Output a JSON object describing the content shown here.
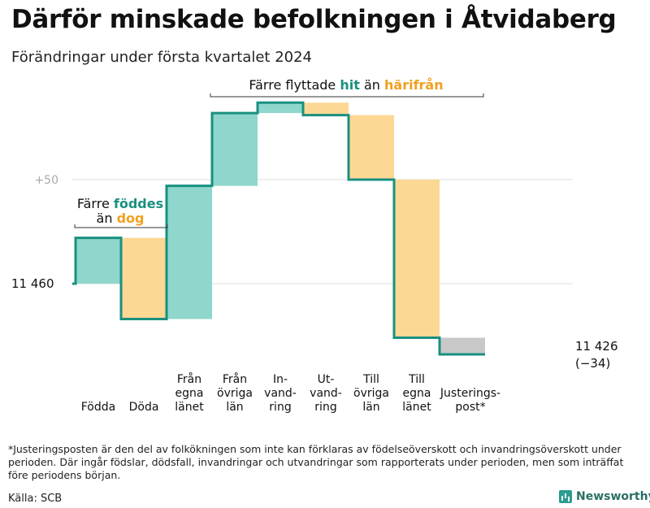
{
  "title": "Därför minskade befolkningen i Åtvidaberg",
  "subtitle": "Förändringar under första kvartalet 2024",
  "chart_data": {
    "type": "waterfall",
    "start_value": 11460,
    "end_value": 11426,
    "start_label": "11  460",
    "end_label_value": "11 426",
    "end_label_change": "(−34)",
    "grid_label": "+50",
    "grid_value": 11510,
    "steps": [
      {
        "name": "Födda",
        "change": 22,
        "color": "#8fd6cc"
      },
      {
        "name": "Döda",
        "change": -39,
        "color": "#fcd894"
      },
      {
        "name": "Från egna länet",
        "change": 64,
        "color": "#8fd6cc"
      },
      {
        "name": "Från övriga län",
        "change": 35,
        "color": "#8fd6cc"
      },
      {
        "name": "In-vandring",
        "change": 5,
        "color": "#8fd6cc"
      },
      {
        "name": "Ut-vandring",
        "change": -6,
        "color": "#fcd894"
      },
      {
        "name": "Till övriga län",
        "change": -31,
        "color": "#fcd894"
      },
      {
        "name": "Till egna länet",
        "change": -76,
        "color": "#fcd894"
      },
      {
        "name": "Justerings-post*",
        "change": -8,
        "color": "#c8c8c8"
      }
    ],
    "x_labels": [
      [
        "Födda"
      ],
      [
        "Döda"
      ],
      [
        "Från",
        "egna",
        "länet"
      ],
      [
        "Från",
        "övriga",
        "län"
      ],
      [
        "In-",
        "vand-",
        "ring"
      ],
      [
        "Ut-",
        "vand-",
        "ring"
      ],
      [
        "Till",
        "övriga",
        "län"
      ],
      [
        "Till",
        "egna",
        "länet"
      ],
      [
        "Justerings-",
        "post*"
      ]
    ],
    "annotations": {
      "births": {
        "pre": "Färre",
        "word1": "föddes",
        "line2_pre": "än",
        "word2": "dog"
      },
      "migration": {
        "pre": "Färre flyttade",
        "word1": "hit",
        "mid": "än",
        "word2": "härifrån"
      }
    },
    "colors": {
      "line": "#1a9080",
      "increase": "#8fd6cc",
      "decrease": "#fcd894",
      "adjust": "#c8c8c8",
      "teal_text": "#1a9080",
      "orange_text": "#f0a020",
      "grid": "#dddddd"
    }
  },
  "footnote": "*Justeringsposten är den del av folkökningen som inte kan förklaras av födelseöverskott och invandringsöverskott under perioden. Där ingår födslar, dödsfall, invandringar och utvandringar som rapporterats under perioden, men som inträffat före periodens början.",
  "source": "Källa: SCB",
  "brand": {
    "name": "Newsworthy",
    "icon": "bar-chart-icon"
  }
}
